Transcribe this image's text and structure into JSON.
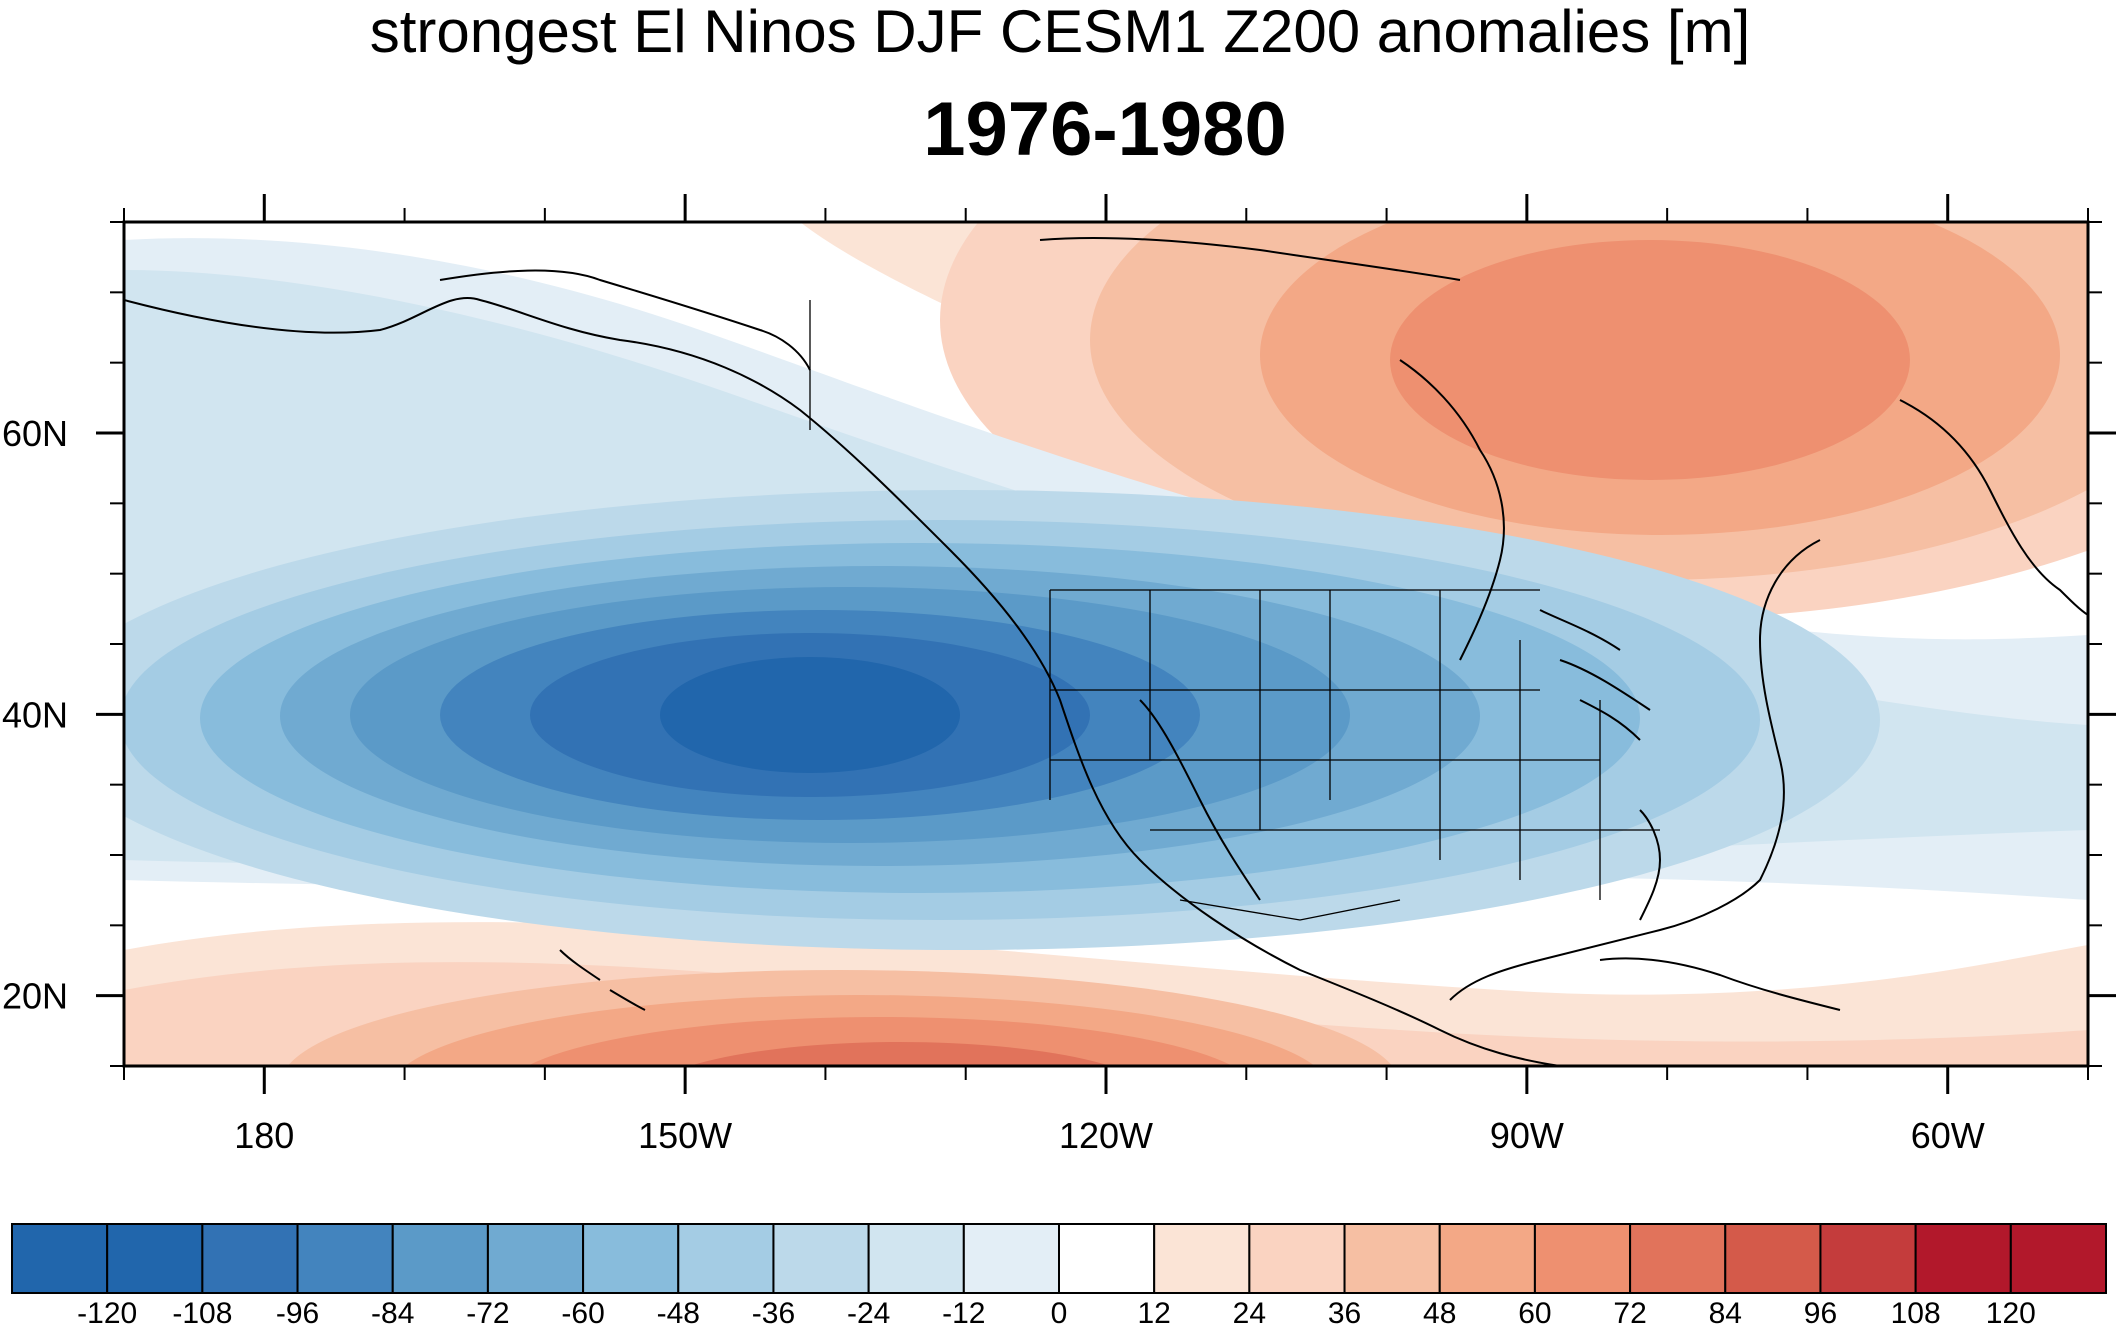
{
  "title": "strongest El Ninos DJF CESM1 Z200 anomalies [m]",
  "subtitle": "1976-1980",
  "map": {
    "lon_range": [
      -190,
      -50
    ],
    "lat_range": [
      15,
      75
    ],
    "lon_ticks": [
      {
        "value": -180,
        "label": "180"
      },
      {
        "value": -150,
        "label": "150W"
      },
      {
        "value": -120,
        "label": "120W"
      },
      {
        "value": -90,
        "label": "90W"
      },
      {
        "value": -60,
        "label": "60W"
      }
    ],
    "lat_ticks": [
      {
        "value": 20,
        "label": "20N"
      },
      {
        "value": 40,
        "label": "40N"
      },
      {
        "value": 60,
        "label": "60N"
      }
    ],
    "features": {
      "low_center": {
        "lon": -140,
        "lat": 40,
        "value": -120
      },
      "high_arctic": {
        "lon": -75,
        "lat": 62,
        "value": 60
      },
      "high_subtropic": {
        "lon": -130,
        "lat": 15,
        "value": 96
      },
      "zero_band_lat": 27
    }
  },
  "colorbar": {
    "labels": [
      "-120",
      "-108",
      "-96",
      "-84",
      "-72",
      "-60",
      "-48",
      "-36",
      "-24",
      "-12",
      "0",
      "12",
      "24",
      "36",
      "48",
      "60",
      "72",
      "84",
      "96",
      "108",
      "120"
    ],
    "colors": [
      "#2166ac",
      "#3272b4",
      "#4384be",
      "#5b9ac8",
      "#70aad1",
      "#88bcdc",
      "#a4cce4",
      "#bcd9ea",
      "#d1e5f0",
      "#e3eef6",
      "#ffffff",
      "#ffffff",
      "#fbe4d6",
      "#fad3c1",
      "#f6bfa3",
      "#f3a886",
      "#ee9070",
      "#e1735b",
      "#d45a4a",
      "#c43c3c",
      "#b2182b"
    ]
  }
}
